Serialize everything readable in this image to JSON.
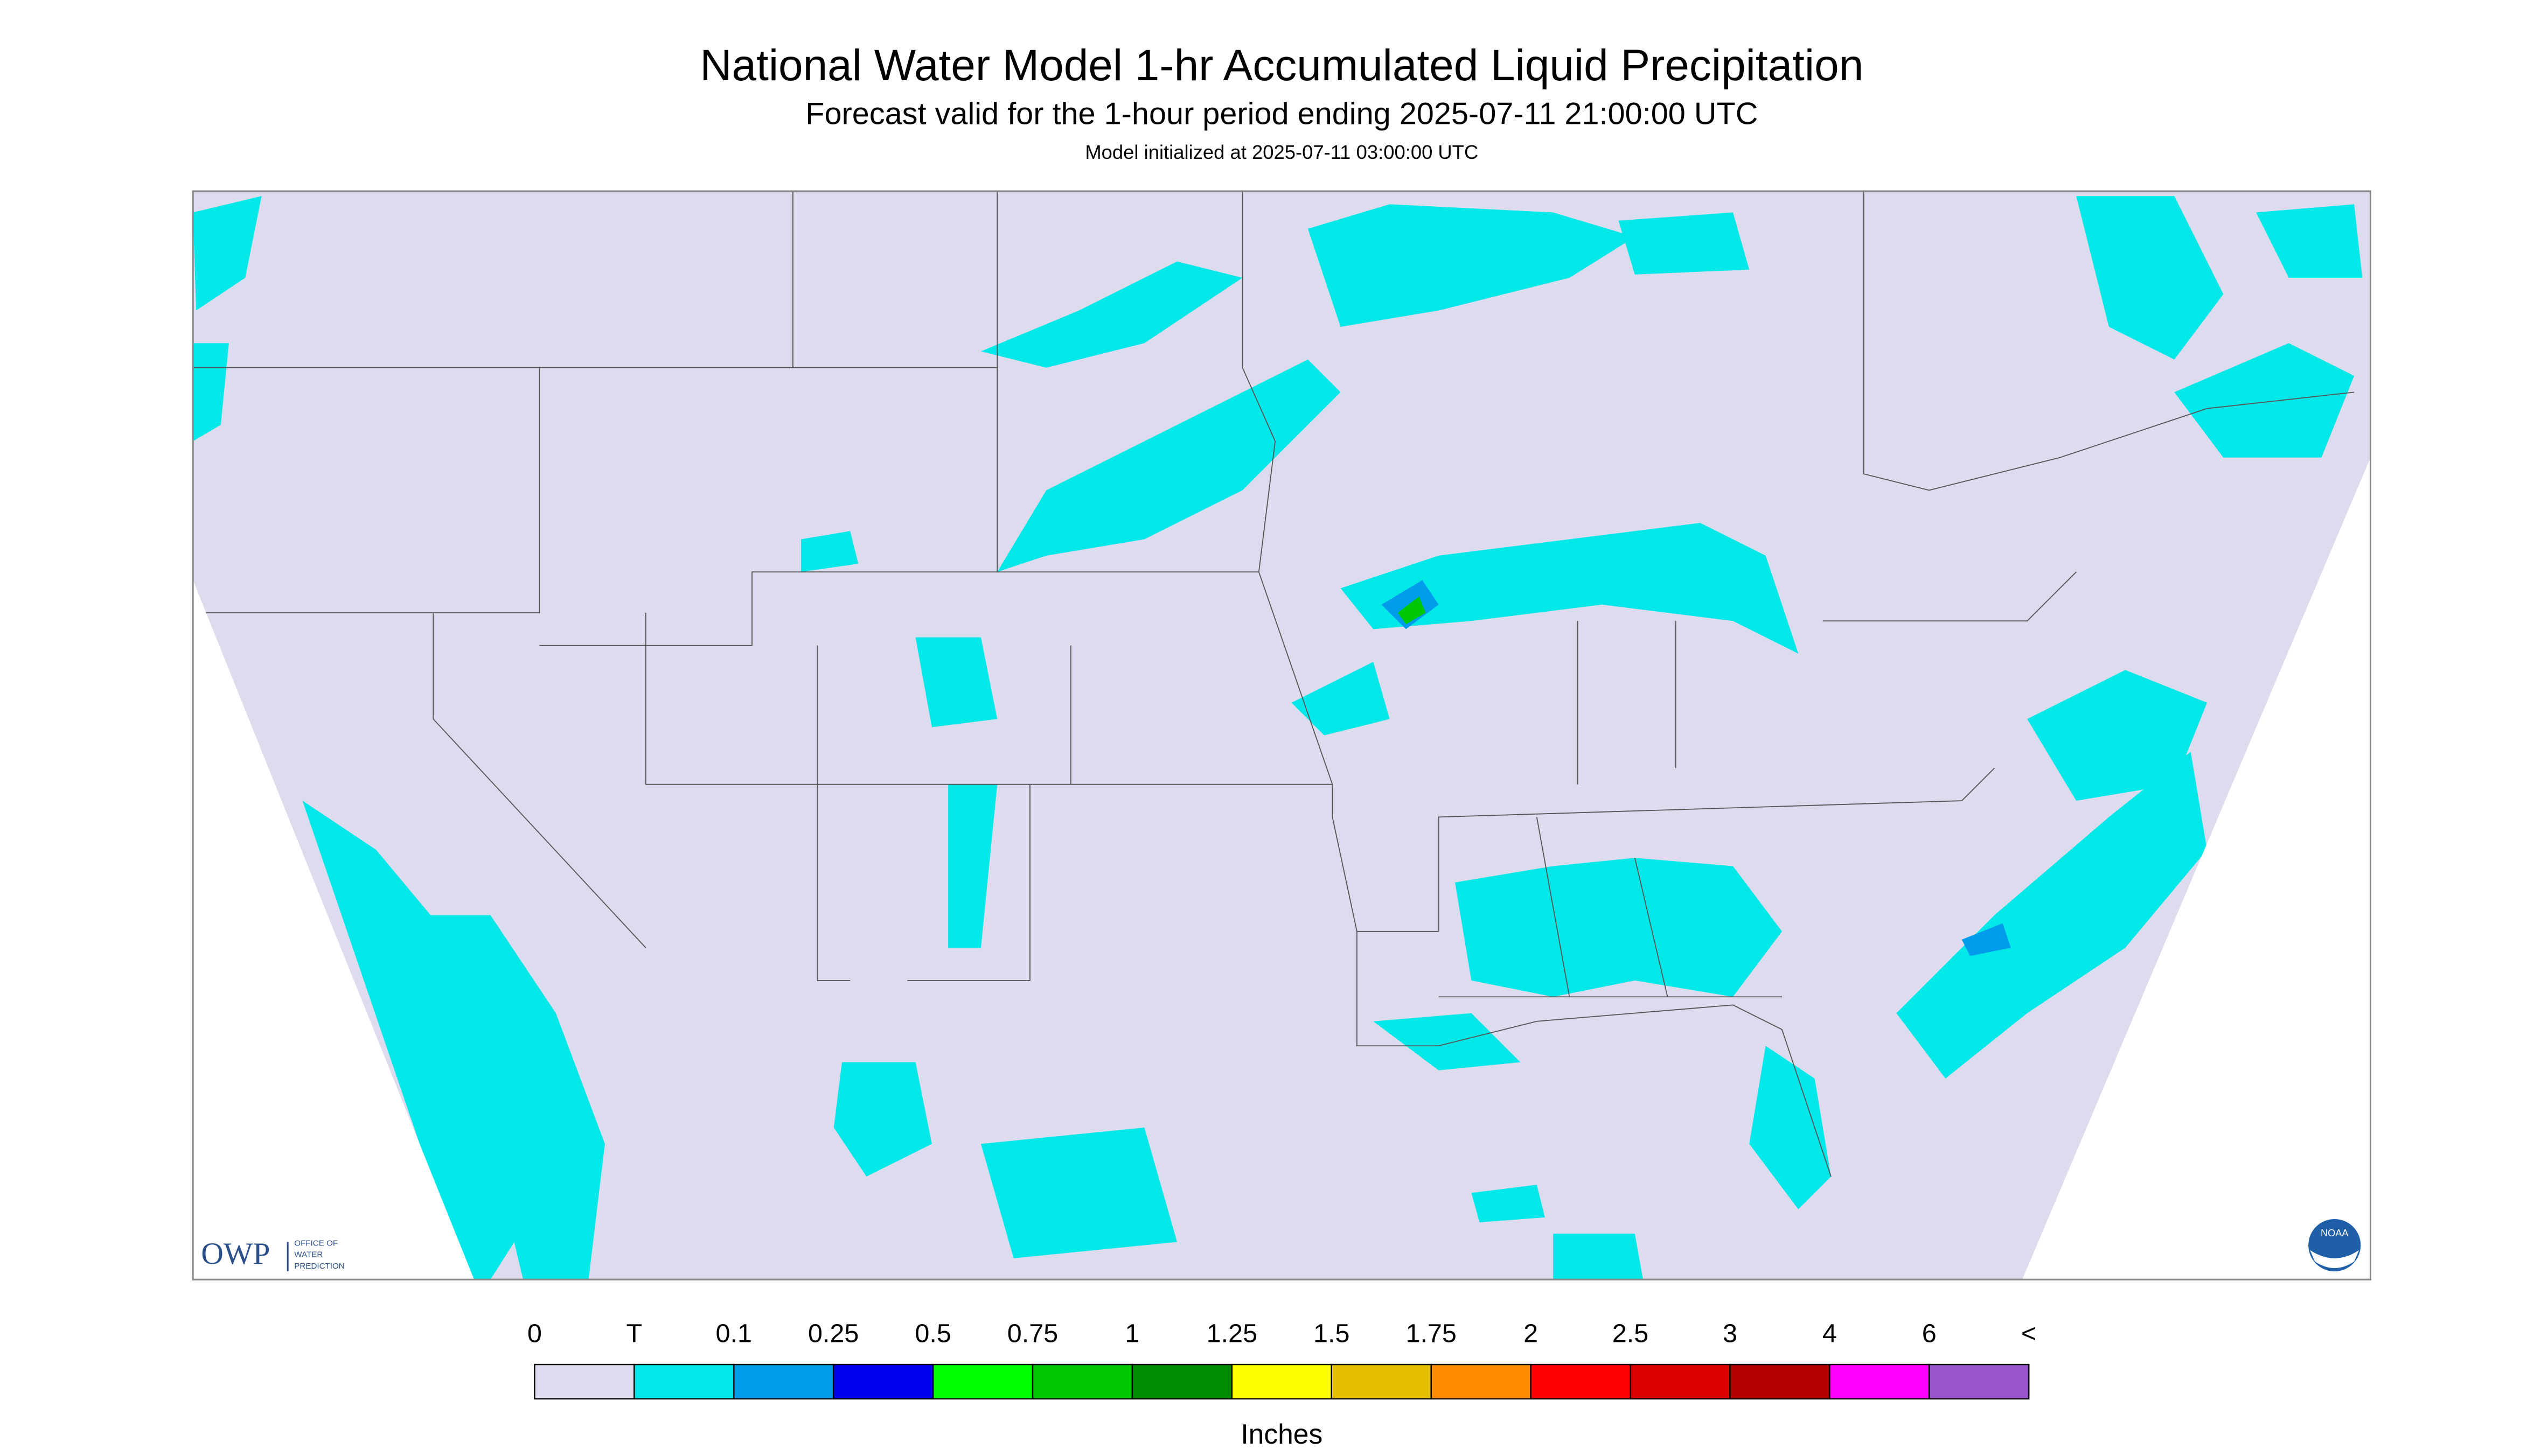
{
  "header": {
    "title": "National Water Model 1-hr Accumulated Liquid Precipitation",
    "subtitle": "Forecast valid for the 1-hour period ending 2025-07-11 21:00:00 UTC",
    "initialized": "Model initialized at 2025-07-11 03:00:00 UTC"
  },
  "legend": {
    "labels": [
      "0",
      "T",
      "0.1",
      "0.25",
      "0.5",
      "0.75",
      "1",
      "1.25",
      "1.5",
      "1.75",
      "2",
      "2.5",
      "3",
      "4",
      "6",
      "<"
    ],
    "colors": [
      "#dcdcee",
      "#00e8e8",
      "#009ceb",
      "#0000f0",
      "#00ff00",
      "#00c800",
      "#008c00",
      "#ffff00",
      "#e6be00",
      "#ff8c00",
      "#ff0000",
      "#dc0000",
      "#b40000",
      "#ff00ff",
      "#9955c9"
    ],
    "unit": "Inches"
  },
  "logo": {
    "owp": "OWP",
    "office": [
      "OFFICE OF",
      "WATER",
      "PREDICTION"
    ],
    "noaa": "NOAA"
  }
}
